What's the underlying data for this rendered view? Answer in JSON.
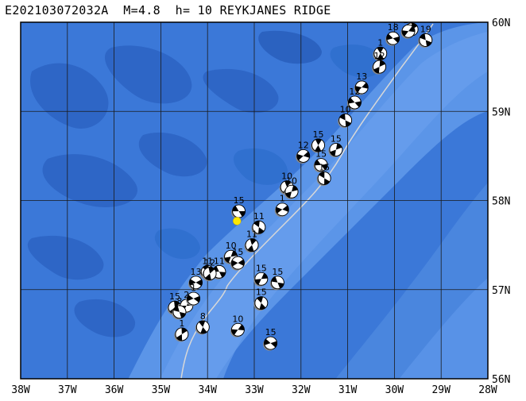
{
  "title": "E202103072032A  M=4.8  h= 10 REYKJANES RIDGE",
  "map": {
    "lon_range": [
      -38,
      -28
    ],
    "lat_range": [
      56,
      60
    ],
    "lon_ticks": [
      {
        "value": -38,
        "label": "38W"
      },
      {
        "value": -37,
        "label": "37W"
      },
      {
        "value": -36,
        "label": "36W"
      },
      {
        "value": -35,
        "label": "35W"
      },
      {
        "value": -34,
        "label": "34W"
      },
      {
        "value": -33,
        "label": "33W"
      },
      {
        "value": -32,
        "label": "32W"
      },
      {
        "value": -31,
        "label": "31W"
      },
      {
        "value": -30,
        "label": "30W"
      },
      {
        "value": -29,
        "label": "29W"
      },
      {
        "value": -28,
        "label": "28W"
      }
    ],
    "lat_ticks": [
      {
        "value": 56,
        "label": "56N"
      },
      {
        "value": 57,
        "label": "57N"
      },
      {
        "value": 58,
        "label": "58N"
      },
      {
        "value": 59,
        "label": "59N"
      },
      {
        "value": 60,
        "label": "60N"
      }
    ],
    "colors": {
      "ocean": "#3b78d8",
      "deep": "#2d65c4",
      "shallow": "#5a93e6",
      "grid": "#1a1a1a",
      "event": "#ffe800"
    },
    "main_event": {
      "lon": -33.37,
      "lat": 57.77
    },
    "labeled_mechanisms": [
      {
        "lon": -29.63,
        "lat": 59.92,
        "label": "12"
      },
      {
        "lon": -29.7,
        "lat": 59.9,
        "label": "10"
      },
      {
        "lon": -30.03,
        "lat": 59.82,
        "label": "18"
      },
      {
        "lon": -29.33,
        "lat": 59.8,
        "label": "19"
      },
      {
        "lon": -30.3,
        "lat": 59.65,
        "label": "1"
      },
      {
        "lon": -30.32,
        "lat": 59.5,
        "label": "12"
      },
      {
        "lon": -30.7,
        "lat": 59.27,
        "label": "13"
      },
      {
        "lon": -30.85,
        "lat": 59.1,
        "label": "12"
      },
      {
        "lon": -31.05,
        "lat": 58.9,
        "label": "10"
      },
      {
        "lon": -31.63,
        "lat": 58.62,
        "label": "15"
      },
      {
        "lon": -31.25,
        "lat": 58.57,
        "label": "15"
      },
      {
        "lon": -31.95,
        "lat": 58.5,
        "label": "12"
      },
      {
        "lon": -31.57,
        "lat": 58.4,
        "label": "15"
      },
      {
        "lon": -31.5,
        "lat": 58.25,
        "label": "15"
      },
      {
        "lon": -32.3,
        "lat": 58.15,
        "label": "10"
      },
      {
        "lon": -32.2,
        "lat": 58.1,
        "label": "10"
      },
      {
        "lon": -32.4,
        "lat": 57.9,
        "label": "1"
      },
      {
        "lon": -33.33,
        "lat": 57.88,
        "label": "15"
      },
      {
        "lon": -32.9,
        "lat": 57.7,
        "label": "11"
      },
      {
        "lon": -33.05,
        "lat": 57.5,
        "label": "11"
      },
      {
        "lon": -33.5,
        "lat": 57.37,
        "label": "10"
      },
      {
        "lon": -33.35,
        "lat": 57.3,
        "label": "15"
      },
      {
        "lon": -33.75,
        "lat": 57.2,
        "label": "11"
      },
      {
        "lon": -34.0,
        "lat": 57.2,
        "label": "11"
      },
      {
        "lon": -33.95,
        "lat": 57.18,
        "label": "12"
      },
      {
        "lon": -32.85,
        "lat": 57.12,
        "label": "15"
      },
      {
        "lon": -34.25,
        "lat": 57.08,
        "label": "13"
      },
      {
        "lon": -32.5,
        "lat": 57.08,
        "label": "15"
      },
      {
        "lon": -32.85,
        "lat": 56.85,
        "label": "15"
      },
      {
        "lon": -34.7,
        "lat": 56.8,
        "label": "15"
      },
      {
        "lon": -34.45,
        "lat": 56.82,
        "label": "2"
      },
      {
        "lon": -34.3,
        "lat": 56.9,
        "label": "1"
      },
      {
        "lon": -34.6,
        "lat": 56.75,
        "label": "8"
      },
      {
        "lon": -34.1,
        "lat": 56.58,
        "label": "8"
      },
      {
        "lon": -34.55,
        "lat": 56.5,
        "label": "1"
      },
      {
        "lon": -33.35,
        "lat": 56.55,
        "label": "10"
      },
      {
        "lon": -32.65,
        "lat": 56.4,
        "label": "15"
      }
    ]
  }
}
